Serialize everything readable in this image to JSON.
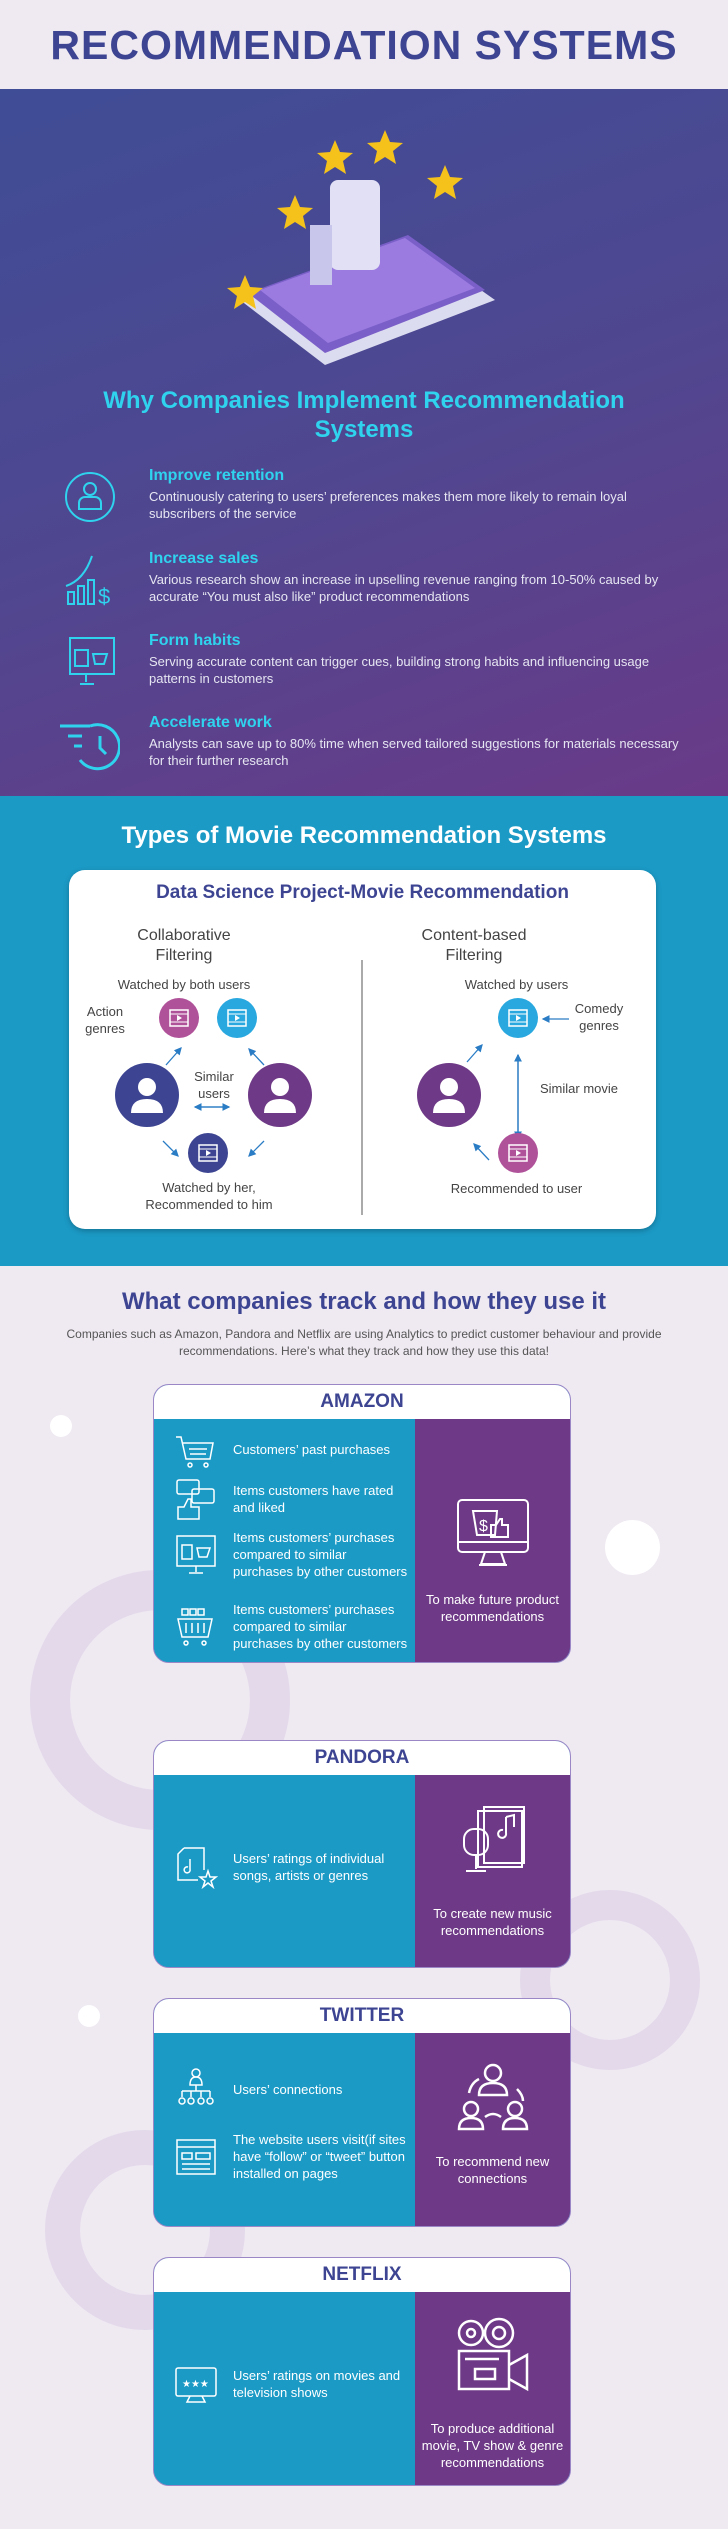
{
  "title": "RECOMMENDATION SYSTEMS",
  "why": {
    "heading": "Why Companies Implement Recommendation Systems",
    "items": [
      {
        "icon": "retention-user-cycle-icon",
        "title": "Improve retention",
        "text": "Continuously catering to users’ preferences makes them more likely to remain loyal subscribers of the service"
      },
      {
        "icon": "sales-growth-icon",
        "title": "Increase sales",
        "text": "Various research show an increase in upselling revenue ranging from 10-50% caused by accurate “You must also like” product recommendations"
      },
      {
        "icon": "online-shop-monitor-icon",
        "title": "Form habits",
        "text": "Serving accurate content can trigger cues, building strong habits and influencing usage patterns in customers"
      },
      {
        "icon": "fast-clock-icon",
        "title": "Accelerate work",
        "text": "Analysts can save up to 80% time when served tailored suggestions for materials necessary for their further research"
      }
    ]
  },
  "types": {
    "heading": "Types of Movie Recommendation Systems",
    "card_title": "Data Science Project-Movie Recommendation",
    "collab": {
      "heading1": "Collaborative",
      "heading2": "Filtering",
      "watched_both": "Watched by both users",
      "action1": "Action",
      "action2": "genres",
      "similar1": "Similar",
      "similar2": "users",
      "her1": "Watched by her,",
      "her2": "Recommended to him"
    },
    "content": {
      "heading1": "Content-based",
      "heading2": "Filtering",
      "watched": "Watched by users",
      "comedy1": "Comedy",
      "comedy2": "genres",
      "similar": "Similar movie",
      "recommended": "Recommended to user"
    },
    "colors": {
      "pink": "#b0529a",
      "blue": "#29a8df",
      "navy": "#3d4592",
      "purple": "#6e3986"
    }
  },
  "track": {
    "heading": "What companies track and how they use it",
    "subtitle": "Companies such as Amazon, Pandora and Netflix are using Analytics to predict customer behaviour and provide recommendations. Here’s what they track and how they use this data!",
    "companies": [
      {
        "name": "AMAZON",
        "tracked": [
          "Customers’ past purchases",
          "Items customers have rated and liked",
          "Items customers’ purchases compared to similar purchases by other customers",
          "Items customers’ purchases compared to similar purchases by other customers"
        ],
        "use": "To make future product recommendations"
      },
      {
        "name": "PANDORA",
        "tracked": [
          "Users’ ratings of individual songs, artists or genres"
        ],
        "use": "To create new music recommendations"
      },
      {
        "name": "TWITTER",
        "tracked": [
          "Users’ connections",
          "The website users visit(if sites have “follow” or “tweet” button installed on pages"
        ],
        "use": "To recommend new connections"
      },
      {
        "name": "NETFLIX",
        "tracked": [
          "Users’ ratings on movies and television shows"
        ],
        "use": "To produce additional movie, TV show & genre recommendations"
      }
    ]
  }
}
